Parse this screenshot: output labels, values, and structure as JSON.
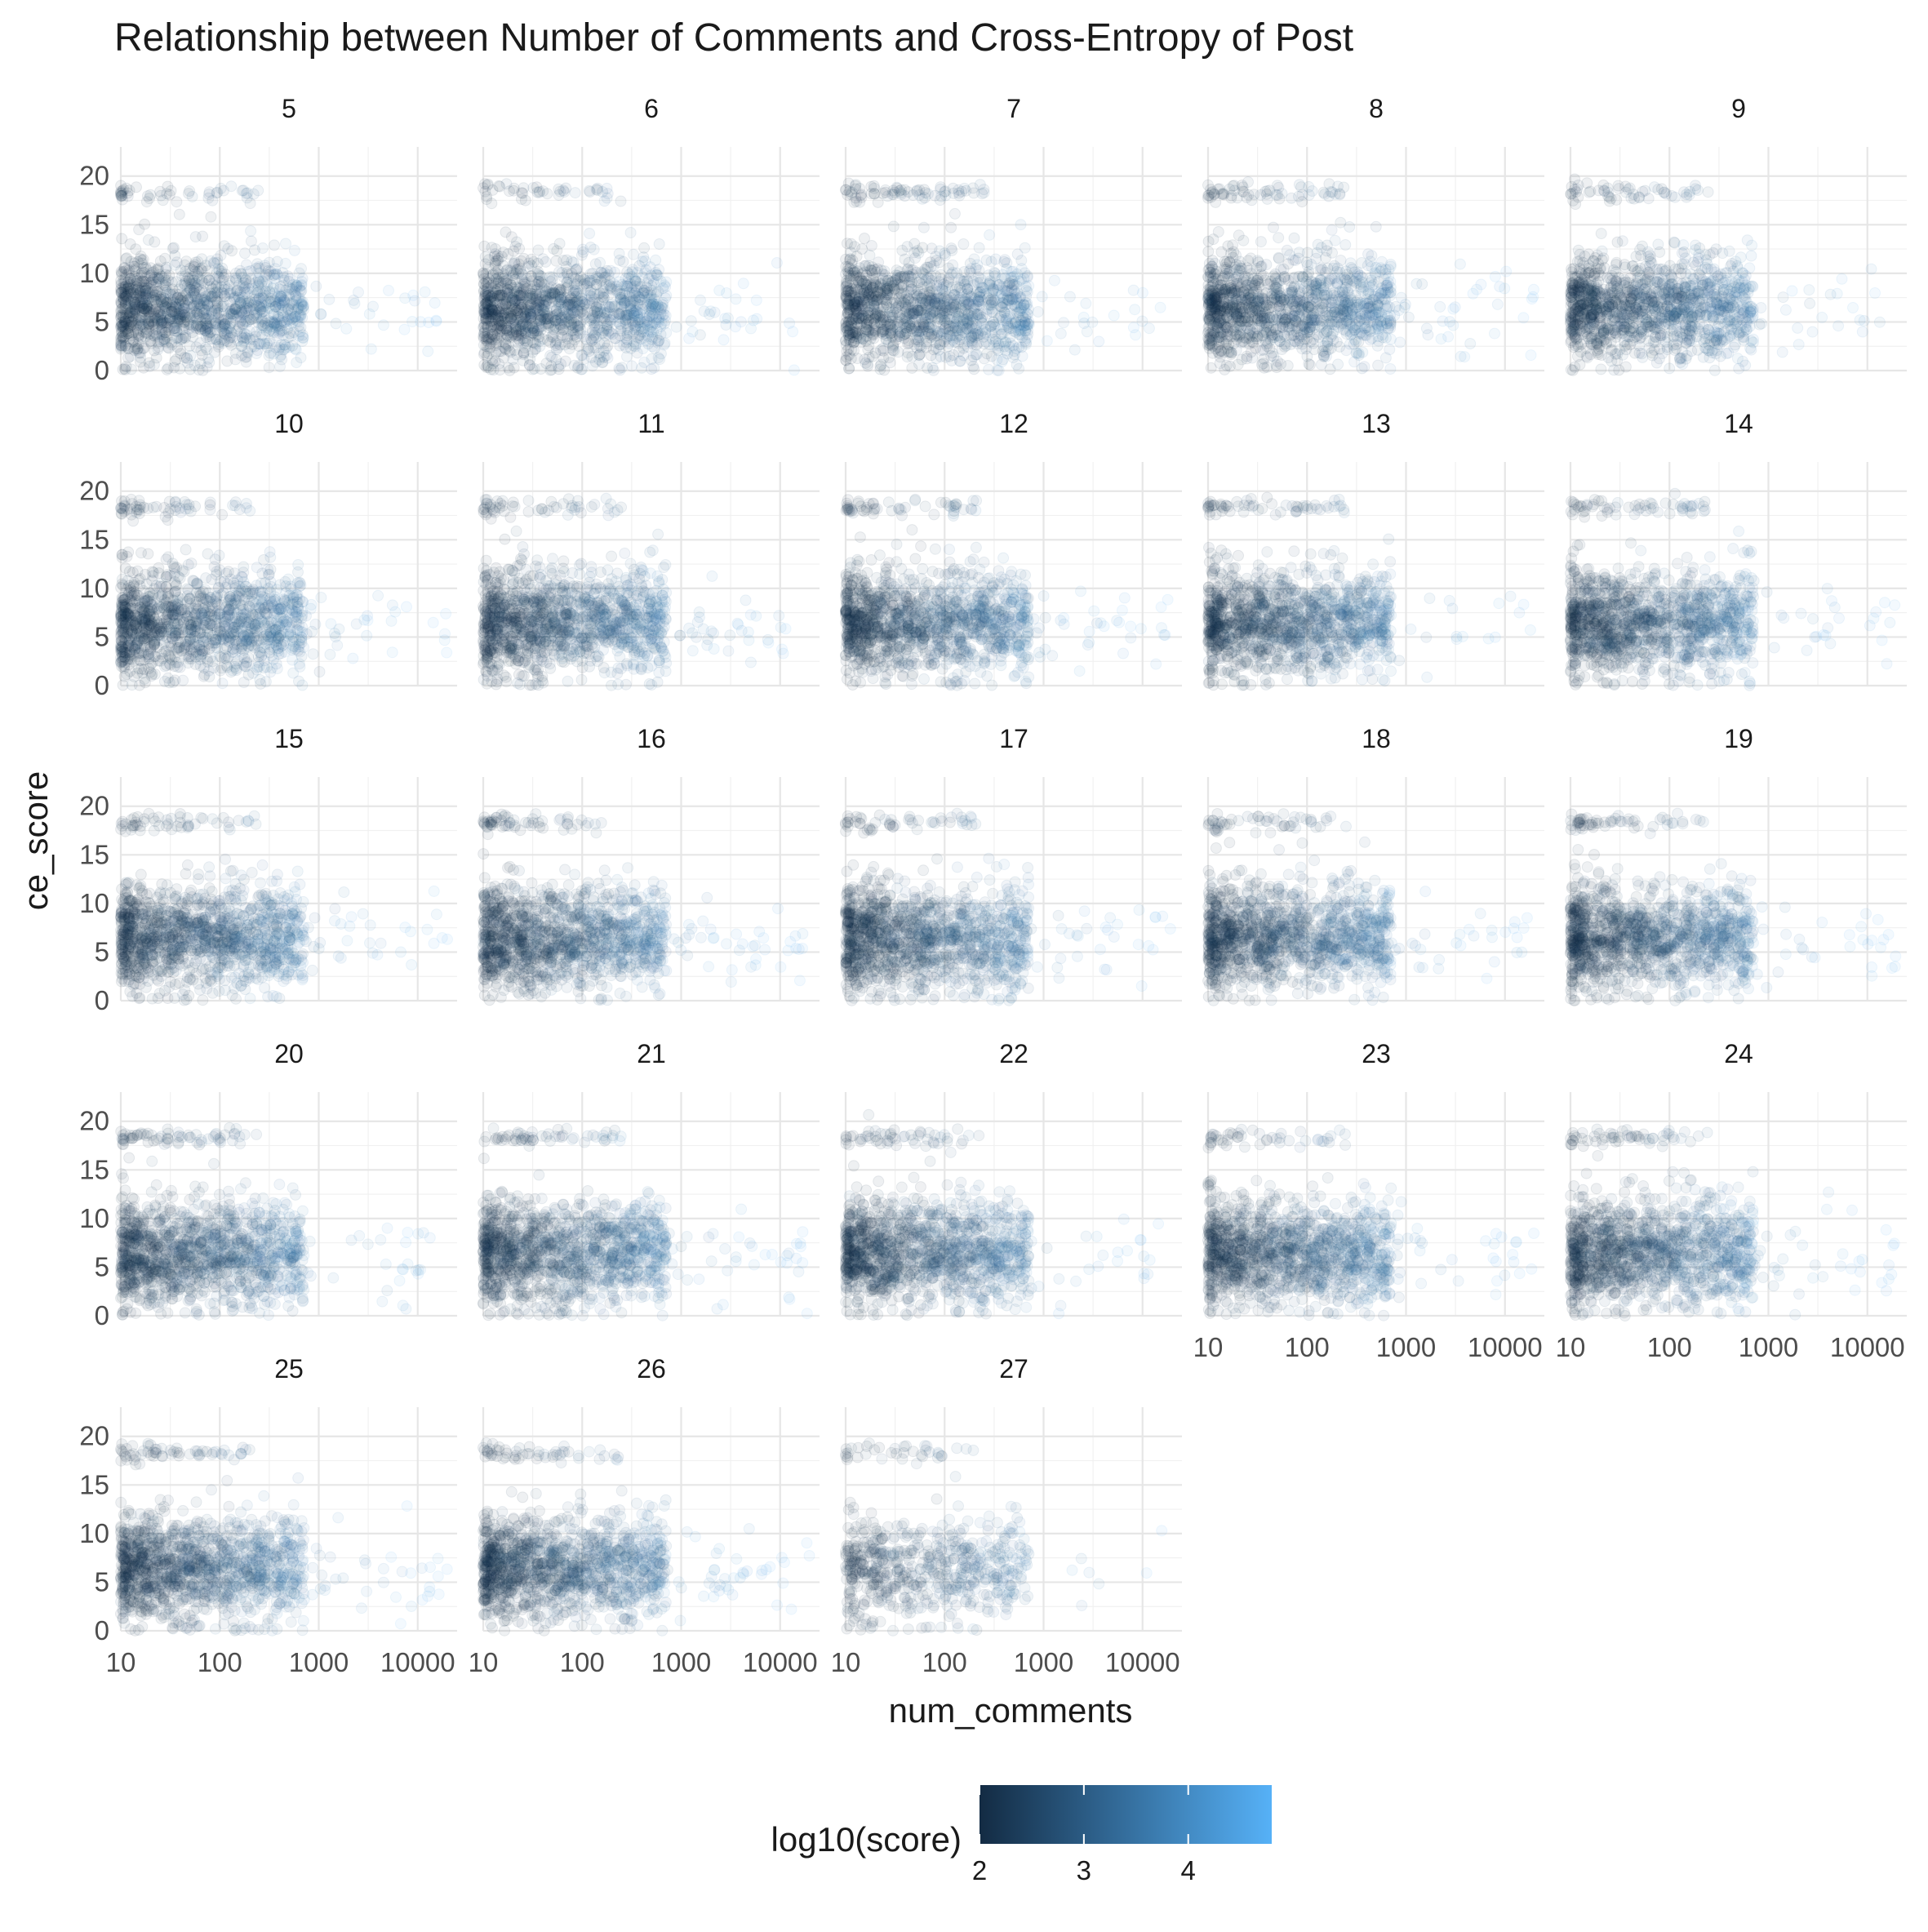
{
  "chart_data": {
    "type": "scatter",
    "title": "Relationship between Number of Comments and Cross-Entropy of Post",
    "xlabel": "num_comments",
    "ylabel": "ce_score",
    "x_scale": "log10",
    "xlim": [
      10,
      25000
    ],
    "ylim": [
      0,
      23
    ],
    "x_ticks": [
      "10",
      "100",
      "1000",
      "10000"
    ],
    "y_ticks": [
      "0",
      "5",
      "10",
      "15",
      "20"
    ],
    "grid": true,
    "facet_variable_values": [
      "5",
      "6",
      "7",
      "8",
      "9",
      "10",
      "11",
      "12",
      "13",
      "14",
      "15",
      "16",
      "17",
      "18",
      "19",
      "20",
      "21",
      "22",
      "23",
      "24",
      "25",
      "26",
      "27"
    ],
    "facet_layout": {
      "ncol": 5,
      "nrow": 5
    },
    "color": {
      "variable": "log10(score)",
      "low": "#132B43",
      "high": "#56B1F7",
      "range": [
        2,
        4.8
      ],
      "breaks": [
        "2",
        "3",
        "4"
      ],
      "legend_position": "bottom"
    },
    "point_alpha": 0.07,
    "point_distribution_summary": {
      "bulk_x_range": [
        10,
        600
      ],
      "bulk_y_range": [
        1,
        13
      ],
      "bulk_y_center": 6,
      "outlier_band_y": 18,
      "max_x": 25000
    }
  }
}
